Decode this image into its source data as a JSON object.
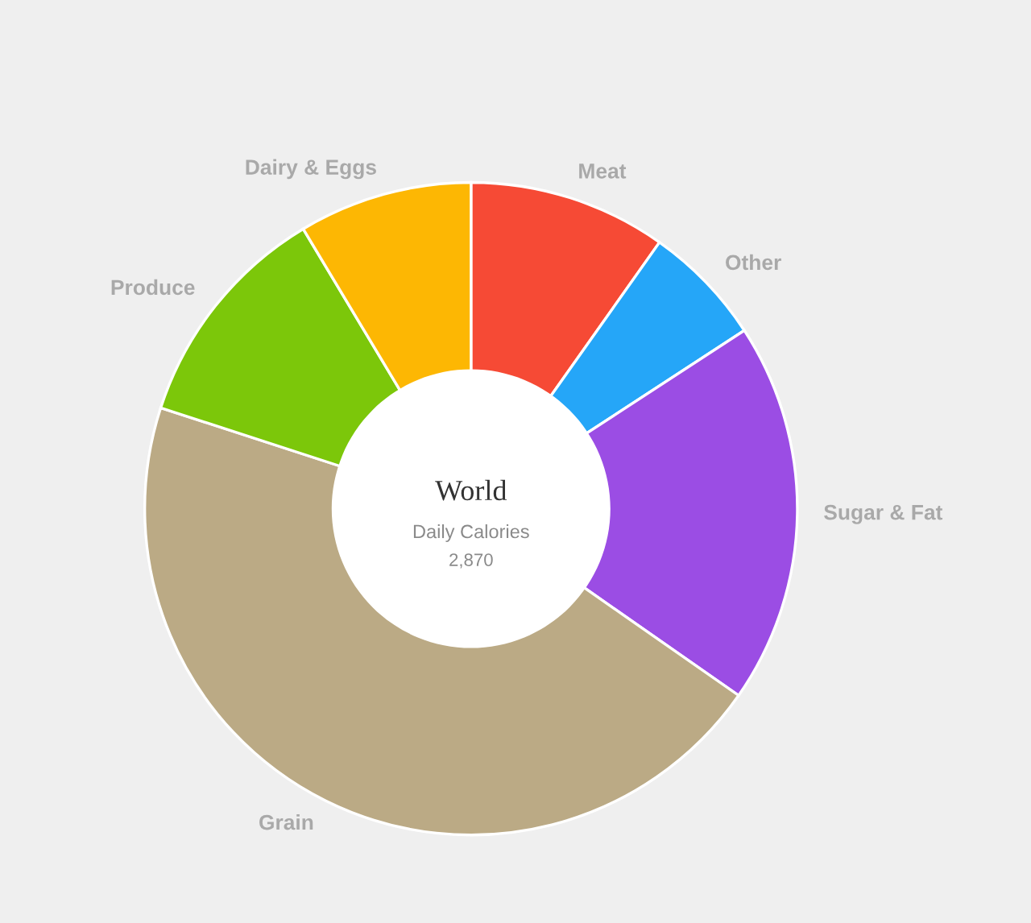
{
  "chart_data": {
    "type": "donut",
    "title": "World",
    "subtitle": "Daily Calories",
    "annotations": [
      "2,870"
    ],
    "categories": [
      "Meat",
      "Other",
      "Sugar & Fat",
      "Grain",
      "Produce",
      "Dairy & Eggs"
    ],
    "values": [
      9.8,
      6.0,
      18.9,
      45.3,
      11.4,
      8.6
    ],
    "colors": [
      "#f64a35",
      "#25a6f8",
      "#9b4de4",
      "#bbaa85",
      "#7cc70a",
      "#fdb703"
    ]
  }
}
